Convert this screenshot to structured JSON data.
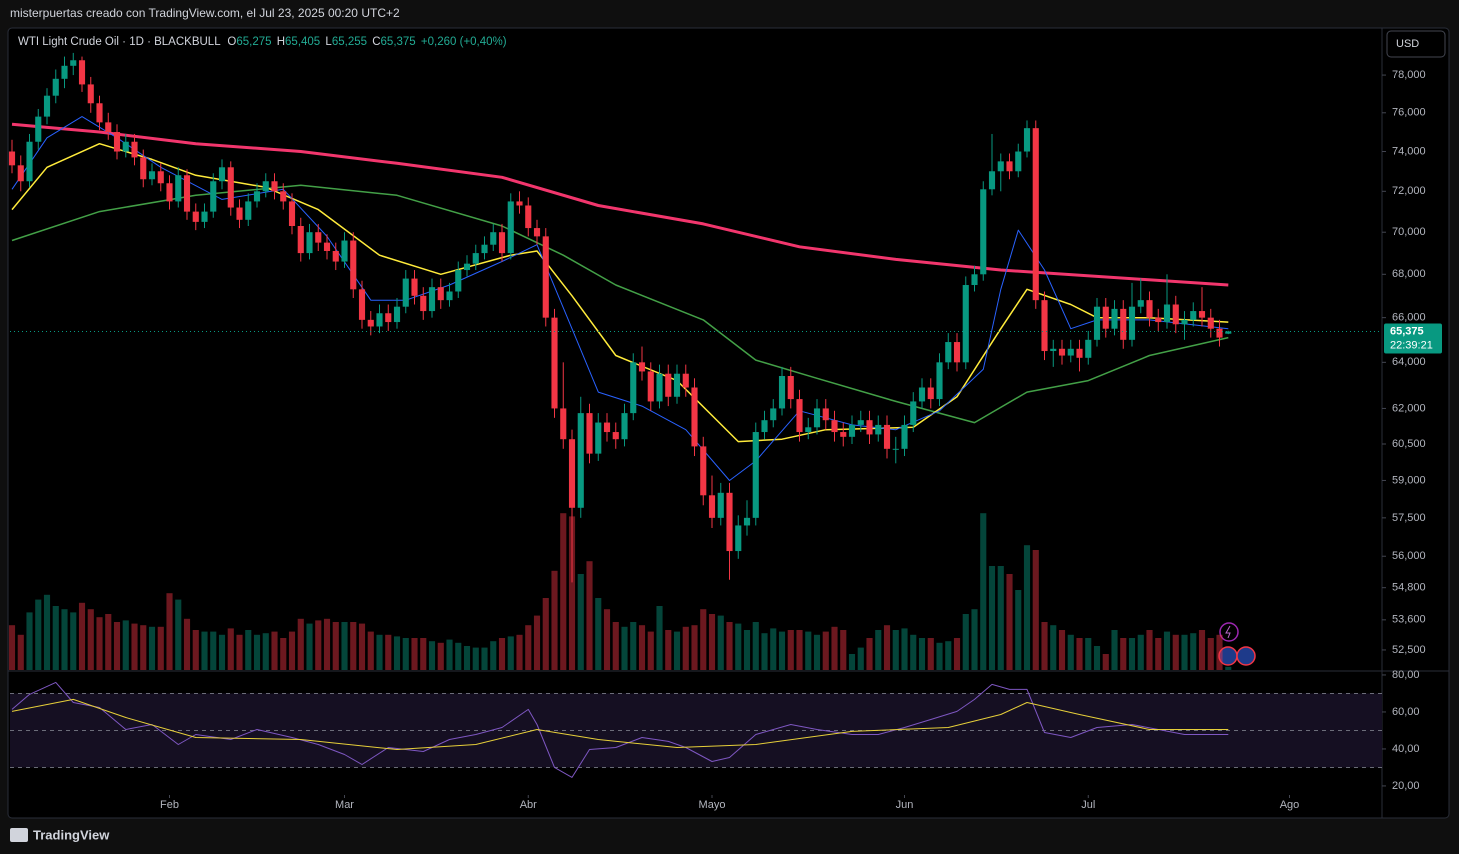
{
  "header": {
    "caption": "misterpuertas creado con TradingView.com, el Jul 23, 2025 00:20 UTC+2",
    "symbol": "WTI Light Crude Oil · 1D · BLACKBULL",
    "ohlc": [
      {
        "key": "O",
        "value": "65,275"
      },
      {
        "key": "H",
        "value": "65,405"
      },
      {
        "key": "L",
        "value": "65,255"
      },
      {
        "key": "C",
        "value": "65,375"
      }
    ],
    "change": "+0,260 (+0,40%)",
    "currency": "USD",
    "countdown": "22:39:21",
    "brand": "TradingView"
  },
  "chart_data": {
    "type": "candlestick",
    "log": true,
    "up_color": "#089981",
    "down_color": "#f23645",
    "ylim": [
      51.78,
      80.57
    ],
    "yticks": [
      {
        "value": 78,
        "label": "78,000"
      },
      {
        "value": 76,
        "label": "76,000"
      },
      {
        "value": 74,
        "label": "74,000"
      },
      {
        "value": 72,
        "label": "72,000"
      },
      {
        "value": 70,
        "label": "70,000"
      },
      {
        "value": 68,
        "label": "68,000"
      },
      {
        "value": 66,
        "label": "66,000"
      },
      {
        "value": 64,
        "label": "64,000"
      },
      {
        "value": 62,
        "label": "62,000"
      },
      {
        "value": 60.5,
        "label": "60,500"
      },
      {
        "value": 59,
        "label": "59,000"
      },
      {
        "value": 57.5,
        "label": "57,500"
      },
      {
        "value": 56,
        "label": "56,000"
      },
      {
        "value": 54.8,
        "label": "54,800"
      },
      {
        "value": 53.6,
        "label": "53,600"
      },
      {
        "value": 52.5,
        "label": "52,500"
      }
    ],
    "xlim": [
      -0.23,
      156.57
    ],
    "xticks": [
      {
        "value": 18,
        "label": "Feb"
      },
      {
        "value": 38,
        "label": "Mar"
      },
      {
        "value": 59,
        "label": "Abr"
      },
      {
        "value": 80,
        "label": "Mayo"
      },
      {
        "value": 102,
        "label": "Jun"
      },
      {
        "value": 123,
        "label": "Jul"
      },
      {
        "value": 146,
        "label": "Ago"
      }
    ],
    "last_price": {
      "value": 65.375,
      "label": "65,375"
    },
    "ohlc": [
      [
        74.0,
        74.6,
        72.9,
        73.3
      ],
      [
        73.3,
        73.8,
        72.0,
        72.5
      ],
      [
        72.5,
        74.9,
        72.2,
        74.5
      ],
      [
        74.5,
        76.2,
        74.1,
        75.8
      ],
      [
        75.8,
        77.3,
        75.4,
        76.9
      ],
      [
        76.9,
        78.3,
        76.5,
        77.8
      ],
      [
        77.8,
        79.0,
        77.3,
        78.5
      ],
      [
        78.5,
        79.2,
        78.0,
        78.8
      ],
      [
        78.8,
        79.0,
        77.1,
        77.5
      ],
      [
        77.5,
        77.9,
        76.0,
        76.5
      ],
      [
        76.5,
        76.9,
        75.1,
        75.5
      ],
      [
        75.5,
        76.0,
        74.6,
        75.0
      ],
      [
        75.0,
        75.4,
        73.6,
        74.0
      ],
      [
        74.0,
        74.9,
        73.7,
        74.5
      ],
      [
        74.5,
        74.9,
        73.3,
        73.7
      ],
      [
        73.7,
        74.1,
        72.2,
        72.6
      ],
      [
        72.6,
        73.4,
        72.3,
        73.0
      ],
      [
        73.0,
        73.4,
        72.0,
        72.4
      ],
      [
        72.4,
        72.8,
        71.1,
        71.5
      ],
      [
        71.5,
        73.2,
        71.2,
        72.8
      ],
      [
        72.8,
        73.1,
        70.6,
        71.0
      ],
      [
        71.0,
        71.4,
        70.1,
        70.5
      ],
      [
        70.5,
        71.4,
        70.2,
        71.0
      ],
      [
        71.0,
        72.9,
        70.7,
        72.5
      ],
      [
        72.5,
        73.6,
        72.1,
        73.2
      ],
      [
        73.2,
        73.5,
        70.8,
        71.2
      ],
      [
        71.2,
        71.6,
        70.2,
        70.6
      ],
      [
        70.6,
        71.9,
        70.3,
        71.5
      ],
      [
        71.5,
        72.4,
        71.2,
        72.0
      ],
      [
        72.0,
        72.9,
        71.7,
        72.5
      ],
      [
        72.5,
        72.9,
        71.6,
        72.0
      ],
      [
        72.0,
        72.4,
        71.1,
        71.5
      ],
      [
        71.5,
        71.9,
        69.9,
        70.3
      ],
      [
        70.3,
        70.7,
        68.6,
        69.0
      ],
      [
        69.0,
        70.4,
        68.7,
        70.0
      ],
      [
        70.0,
        70.4,
        69.1,
        69.5
      ],
      [
        69.5,
        69.9,
        68.7,
        69.1
      ],
      [
        69.1,
        69.5,
        68.2,
        68.6
      ],
      [
        68.6,
        70.0,
        68.3,
        69.6
      ],
      [
        69.6,
        70.0,
        66.9,
        67.3
      ],
      [
        67.3,
        67.7,
        65.5,
        65.9
      ],
      [
        65.9,
        66.3,
        65.2,
        65.6
      ],
      [
        65.6,
        66.6,
        65.3,
        66.2
      ],
      [
        66.2,
        66.6,
        65.4,
        65.8
      ],
      [
        65.8,
        66.9,
        65.5,
        66.5
      ],
      [
        66.5,
        68.2,
        66.2,
        67.8
      ],
      [
        67.8,
        68.2,
        66.6,
        67.0
      ],
      [
        67.0,
        67.4,
        65.9,
        66.3
      ],
      [
        66.3,
        67.8,
        66.0,
        67.4
      ],
      [
        67.4,
        67.8,
        66.4,
        66.8
      ],
      [
        66.8,
        67.6,
        66.5,
        67.2
      ],
      [
        67.2,
        68.6,
        66.9,
        68.2
      ],
      [
        68.2,
        68.9,
        67.9,
        68.5
      ],
      [
        68.5,
        69.4,
        68.2,
        69.0
      ],
      [
        69.0,
        69.8,
        68.7,
        69.4
      ],
      [
        69.4,
        70.4,
        69.1,
        70.0
      ],
      [
        70.0,
        70.4,
        68.6,
        69.0
      ],
      [
        69.0,
        71.9,
        68.7,
        71.5
      ],
      [
        71.5,
        72.0,
        70.9,
        71.3
      ],
      [
        71.3,
        71.7,
        69.8,
        70.2
      ],
      [
        70.2,
        70.6,
        69.4,
        69.8
      ],
      [
        69.8,
        70.2,
        65.6,
        66.0
      ],
      [
        66.0,
        66.4,
        61.6,
        62.0
      ],
      [
        62.0,
        64.0,
        60.3,
        60.7
      ],
      [
        60.7,
        61.1,
        55.0,
        57.9
      ],
      [
        57.9,
        62.5,
        57.5,
        61.8
      ],
      [
        61.8,
        62.2,
        59.7,
        60.1
      ],
      [
        60.1,
        61.8,
        59.8,
        61.4
      ],
      [
        61.4,
        61.8,
        60.6,
        61.0
      ],
      [
        61.0,
        61.4,
        60.3,
        60.7
      ],
      [
        60.7,
        62.2,
        60.4,
        61.8
      ],
      [
        61.8,
        64.4,
        61.5,
        64.0
      ],
      [
        64.0,
        64.7,
        63.2,
        63.6
      ],
      [
        63.6,
        64.0,
        61.9,
        62.3
      ],
      [
        62.3,
        63.9,
        62.0,
        63.5
      ],
      [
        63.5,
        63.9,
        62.1,
        62.5
      ],
      [
        62.5,
        63.9,
        62.2,
        63.5
      ],
      [
        63.5,
        63.9,
        62.5,
        62.9
      ],
      [
        62.9,
        63.3,
        60.0,
        60.4
      ],
      [
        60.4,
        60.8,
        58.0,
        58.4
      ],
      [
        58.4,
        59.2,
        57.1,
        57.5
      ],
      [
        57.5,
        58.9,
        57.2,
        58.5
      ],
      [
        58.5,
        58.9,
        55.1,
        56.2
      ],
      [
        56.2,
        57.6,
        55.9,
        57.2
      ],
      [
        57.2,
        58.2,
        56.8,
        57.5
      ],
      [
        57.5,
        61.4,
        57.2,
        61.0
      ],
      [
        61.0,
        61.9,
        60.7,
        61.5
      ],
      [
        61.5,
        62.4,
        61.2,
        62.0
      ],
      [
        62.0,
        63.8,
        61.7,
        63.4
      ],
      [
        63.4,
        63.8,
        62.0,
        62.4
      ],
      [
        62.4,
        62.8,
        60.6,
        61.0
      ],
      [
        61.0,
        61.6,
        60.7,
        61.2
      ],
      [
        61.2,
        62.4,
        60.9,
        62.0
      ],
      [
        62.0,
        62.4,
        61.1,
        61.5
      ],
      [
        61.5,
        61.9,
        60.6,
        61.0
      ],
      [
        61.0,
        61.4,
        60.4,
        60.8
      ],
      [
        60.8,
        61.7,
        60.5,
        61.3
      ],
      [
        61.3,
        61.9,
        61.0,
        61.5
      ],
      [
        61.5,
        61.9,
        60.5,
        60.9
      ],
      [
        60.9,
        61.7,
        60.6,
        61.3
      ],
      [
        61.3,
        61.7,
        59.9,
        60.3
      ],
      [
        60.3,
        60.8,
        59.7,
        60.3
      ],
      [
        60.3,
        61.7,
        60.0,
        61.3
      ],
      [
        61.3,
        62.7,
        61.0,
        62.3
      ],
      [
        62.3,
        63.3,
        62.0,
        62.9
      ],
      [
        62.9,
        63.3,
        62.0,
        62.4
      ],
      [
        62.4,
        64.4,
        62.1,
        64.0
      ],
      [
        64.0,
        65.3,
        63.7,
        64.9
      ],
      [
        64.9,
        65.3,
        63.6,
        64.0
      ],
      [
        64.0,
        67.9,
        63.7,
        67.5
      ],
      [
        67.5,
        68.4,
        67.2,
        68.0
      ],
      [
        68.0,
        72.5,
        67.7,
        72.1
      ],
      [
        72.1,
        74.9,
        71.8,
        73.0
      ],
      [
        73.0,
        73.9,
        72.0,
        73.5
      ],
      [
        73.5,
        73.9,
        72.6,
        73.0
      ],
      [
        73.0,
        74.4,
        72.7,
        74.0
      ],
      [
        74.0,
        75.6,
        73.7,
        75.2
      ],
      [
        75.2,
        75.6,
        66.4,
        66.8
      ],
      [
        66.8,
        67.2,
        64.1,
        64.5
      ],
      [
        64.5,
        65.0,
        63.8,
        64.6
      ],
      [
        64.6,
        65.0,
        63.9,
        64.3
      ],
      [
        64.3,
        65.0,
        64.0,
        64.6
      ],
      [
        64.6,
        65.0,
        63.6,
        64.2
      ],
      [
        64.2,
        65.4,
        63.9,
        65.0
      ],
      [
        65.0,
        66.9,
        64.7,
        66.5
      ],
      [
        66.5,
        66.9,
        65.1,
        65.5
      ],
      [
        65.5,
        66.8,
        65.2,
        66.4
      ],
      [
        66.4,
        66.8,
        64.6,
        65.0
      ],
      [
        65.0,
        67.6,
        64.7,
        66.5
      ],
      [
        66.5,
        67.8,
        66.2,
        66.8
      ],
      [
        66.8,
        67.2,
        65.6,
        66.0
      ],
      [
        66.0,
        66.4,
        65.4,
        65.8
      ],
      [
        65.8,
        68.0,
        65.5,
        66.6
      ],
      [
        66.6,
        67.0,
        65.3,
        65.7
      ],
      [
        65.7,
        66.3,
        65.0,
        65.9
      ],
      [
        65.9,
        66.7,
        65.6,
        66.3
      ],
      [
        66.3,
        67.4,
        65.6,
        66.0
      ],
      [
        66.0,
        66.4,
        65.1,
        65.5
      ],
      [
        65.5,
        65.9,
        64.7,
        65.1
      ],
      [
        65.275,
        65.405,
        65.255,
        65.375
      ]
    ],
    "vlim": [
      0,
      100
    ],
    "volume": [
      28,
      22,
      36,
      44,
      47,
      40,
      38,
      36,
      42,
      38,
      33,
      35,
      30,
      31,
      29,
      28,
      27,
      27,
      48,
      44,
      32,
      25,
      24,
      24,
      22,
      26,
      22,
      25,
      22,
      23,
      24,
      20,
      24,
      32,
      29,
      31,
      32,
      30,
      30,
      30,
      29,
      24,
      22,
      22,
      21,
      20,
      20,
      20,
      18,
      17,
      19,
      17,
      15,
      14,
      14,
      18,
      20,
      21,
      22,
      28,
      34,
      45,
      62,
      98,
      96,
      60,
      68,
      45,
      38,
      30,
      27,
      30,
      28,
      24,
      40,
      25,
      24,
      27,
      28,
      38,
      35,
      34,
      30,
      29,
      25,
      30,
      23,
      26,
      24,
      25,
      25,
      24,
      22,
      24,
      27,
      25,
      10,
      14,
      20,
      25,
      28,
      25,
      26,
      22,
      20,
      20,
      17,
      18,
      20,
      35,
      38,
      98,
      65,
      65,
      60,
      50,
      78,
      75,
      30,
      28,
      25,
      22,
      20,
      20,
      15,
      10,
      25,
      20,
      20,
      22,
      25,
      20,
      24,
      22,
      22,
      23,
      25,
      20,
      22,
      2
    ],
    "lines": [
      {
        "color": "#f2366d",
        "width": 3,
        "x": [
          0,
          10,
          21,
          33,
          44,
          56,
          67,
          79,
          90,
          101,
          113,
          139
        ],
        "values": [
          75.4,
          75.0,
          74.4,
          74.0,
          73.4,
          72.7,
          71.3,
          70.4,
          69.3,
          68.7,
          68.2,
          67.5
        ]
      },
      {
        "color": "#43a047",
        "width": 1.5,
        "x": [
          0,
          10,
          21,
          33,
          44,
          56,
          63,
          69,
          79,
          85,
          92,
          101,
          110,
          116,
          123,
          130,
          139
        ],
        "values": [
          69.6,
          71.0,
          71.8,
          72.3,
          71.8,
          70.3,
          68.9,
          67.5,
          65.9,
          64.1,
          63.3,
          62.3,
          61.4,
          62.7,
          63.2,
          64.3,
          65.1
        ]
      },
      {
        "color": "#ffeb3b",
        "width": 1.5,
        "x": [
          0,
          4,
          10,
          16,
          21,
          29,
          35,
          42,
          49,
          57,
          60,
          64,
          69,
          76,
          83,
          88,
          93,
          103,
          108,
          113,
          116,
          121,
          124,
          130,
          139
        ],
        "values": [
          71.1,
          73.2,
          74.4,
          73.6,
          72.8,
          72.2,
          71.1,
          68.9,
          68.0,
          68.9,
          69.1,
          67.0,
          64.3,
          63.2,
          60.6,
          60.7,
          61.1,
          61.2,
          62.5,
          65.5,
          67.3,
          66.6,
          66.0,
          66.0,
          65.8
        ]
      },
      {
        "color": "#2962ff",
        "width": 1,
        "x": [
          0,
          4,
          8,
          12,
          17,
          24,
          31,
          36,
          41,
          45,
          50,
          56,
          60,
          64,
          67,
          72,
          77,
          82,
          85,
          90,
          96,
          101,
          106,
          111,
          113,
          115,
          118,
          121,
          124,
          130,
          139
        ],
        "values": [
          72.1,
          74.7,
          75.8,
          74.7,
          73.2,
          71.6,
          72.1,
          69.8,
          66.8,
          66.8,
          67.5,
          68.6,
          69.4,
          65.5,
          62.7,
          62.1,
          61.1,
          59.0,
          59.8,
          61.9,
          61.3,
          61.1,
          61.9,
          63.7,
          67.3,
          70.1,
          68.2,
          65.5,
          65.9,
          65.9,
          65.5
        ]
      }
    ],
    "rsi": {
      "ylim": [
        15.1,
        81.6
      ],
      "yticks": [
        {
          "value": 80,
          "label": "80,00"
        },
        {
          "value": 60,
          "label": "60,00"
        },
        {
          "value": 40,
          "label": "40,00"
        },
        {
          "value": 20,
          "label": "20,00"
        }
      ],
      "levels": [
        70,
        50,
        30
      ],
      "lines": [
        {
          "color": "#7e57c2",
          "x": [
            0,
            2,
            5,
            7,
            10,
            13,
            16,
            19,
            21,
            25,
            28,
            32,
            35,
            38,
            40,
            43,
            47,
            50,
            53,
            56,
            59,
            60,
            62,
            64,
            66,
            69,
            72,
            75,
            77,
            80,
            82,
            85,
            89,
            92,
            96,
            99,
            102,
            105,
            108,
            110,
            112,
            114,
            116,
            118,
            121,
            124,
            128,
            131,
            134,
            139
          ],
          "values": [
            61.4,
            69.5,
            76,
            65.1,
            62.4,
            50.5,
            53.2,
            42.4,
            47.8,
            45.1,
            50.5,
            46.2,
            42.4,
            37,
            31.6,
            40.8,
            38.6,
            45.1,
            47.8,
            51.6,
            61.4,
            53.2,
            30,
            24.6,
            39.7,
            40.8,
            46.2,
            44.1,
            40.8,
            33.2,
            35.4,
            47.8,
            53.2,
            50.5,
            47.8,
            47.8,
            51.6,
            55.9,
            60.3,
            66.8,
            74.9,
            72.2,
            72.2,
            48.9,
            46.2,
            51.6,
            53.2,
            50.5,
            47.8,
            47.8
          ]
        },
        {
          "color": "#e6cf3a",
          "x": [
            0,
            7,
            13,
            21,
            33,
            44,
            53,
            60,
            67,
            76,
            85,
            96,
            107,
            113,
            116,
            122,
            130,
            139
          ],
          "values": [
            60.3,
            66.8,
            57,
            46.2,
            45.1,
            39.7,
            42.4,
            50.5,
            45.1,
            40.8,
            42.4,
            49.5,
            51.6,
            58.6,
            65.1,
            58.6,
            50.5,
            50.5
          ]
        }
      ]
    }
  }
}
